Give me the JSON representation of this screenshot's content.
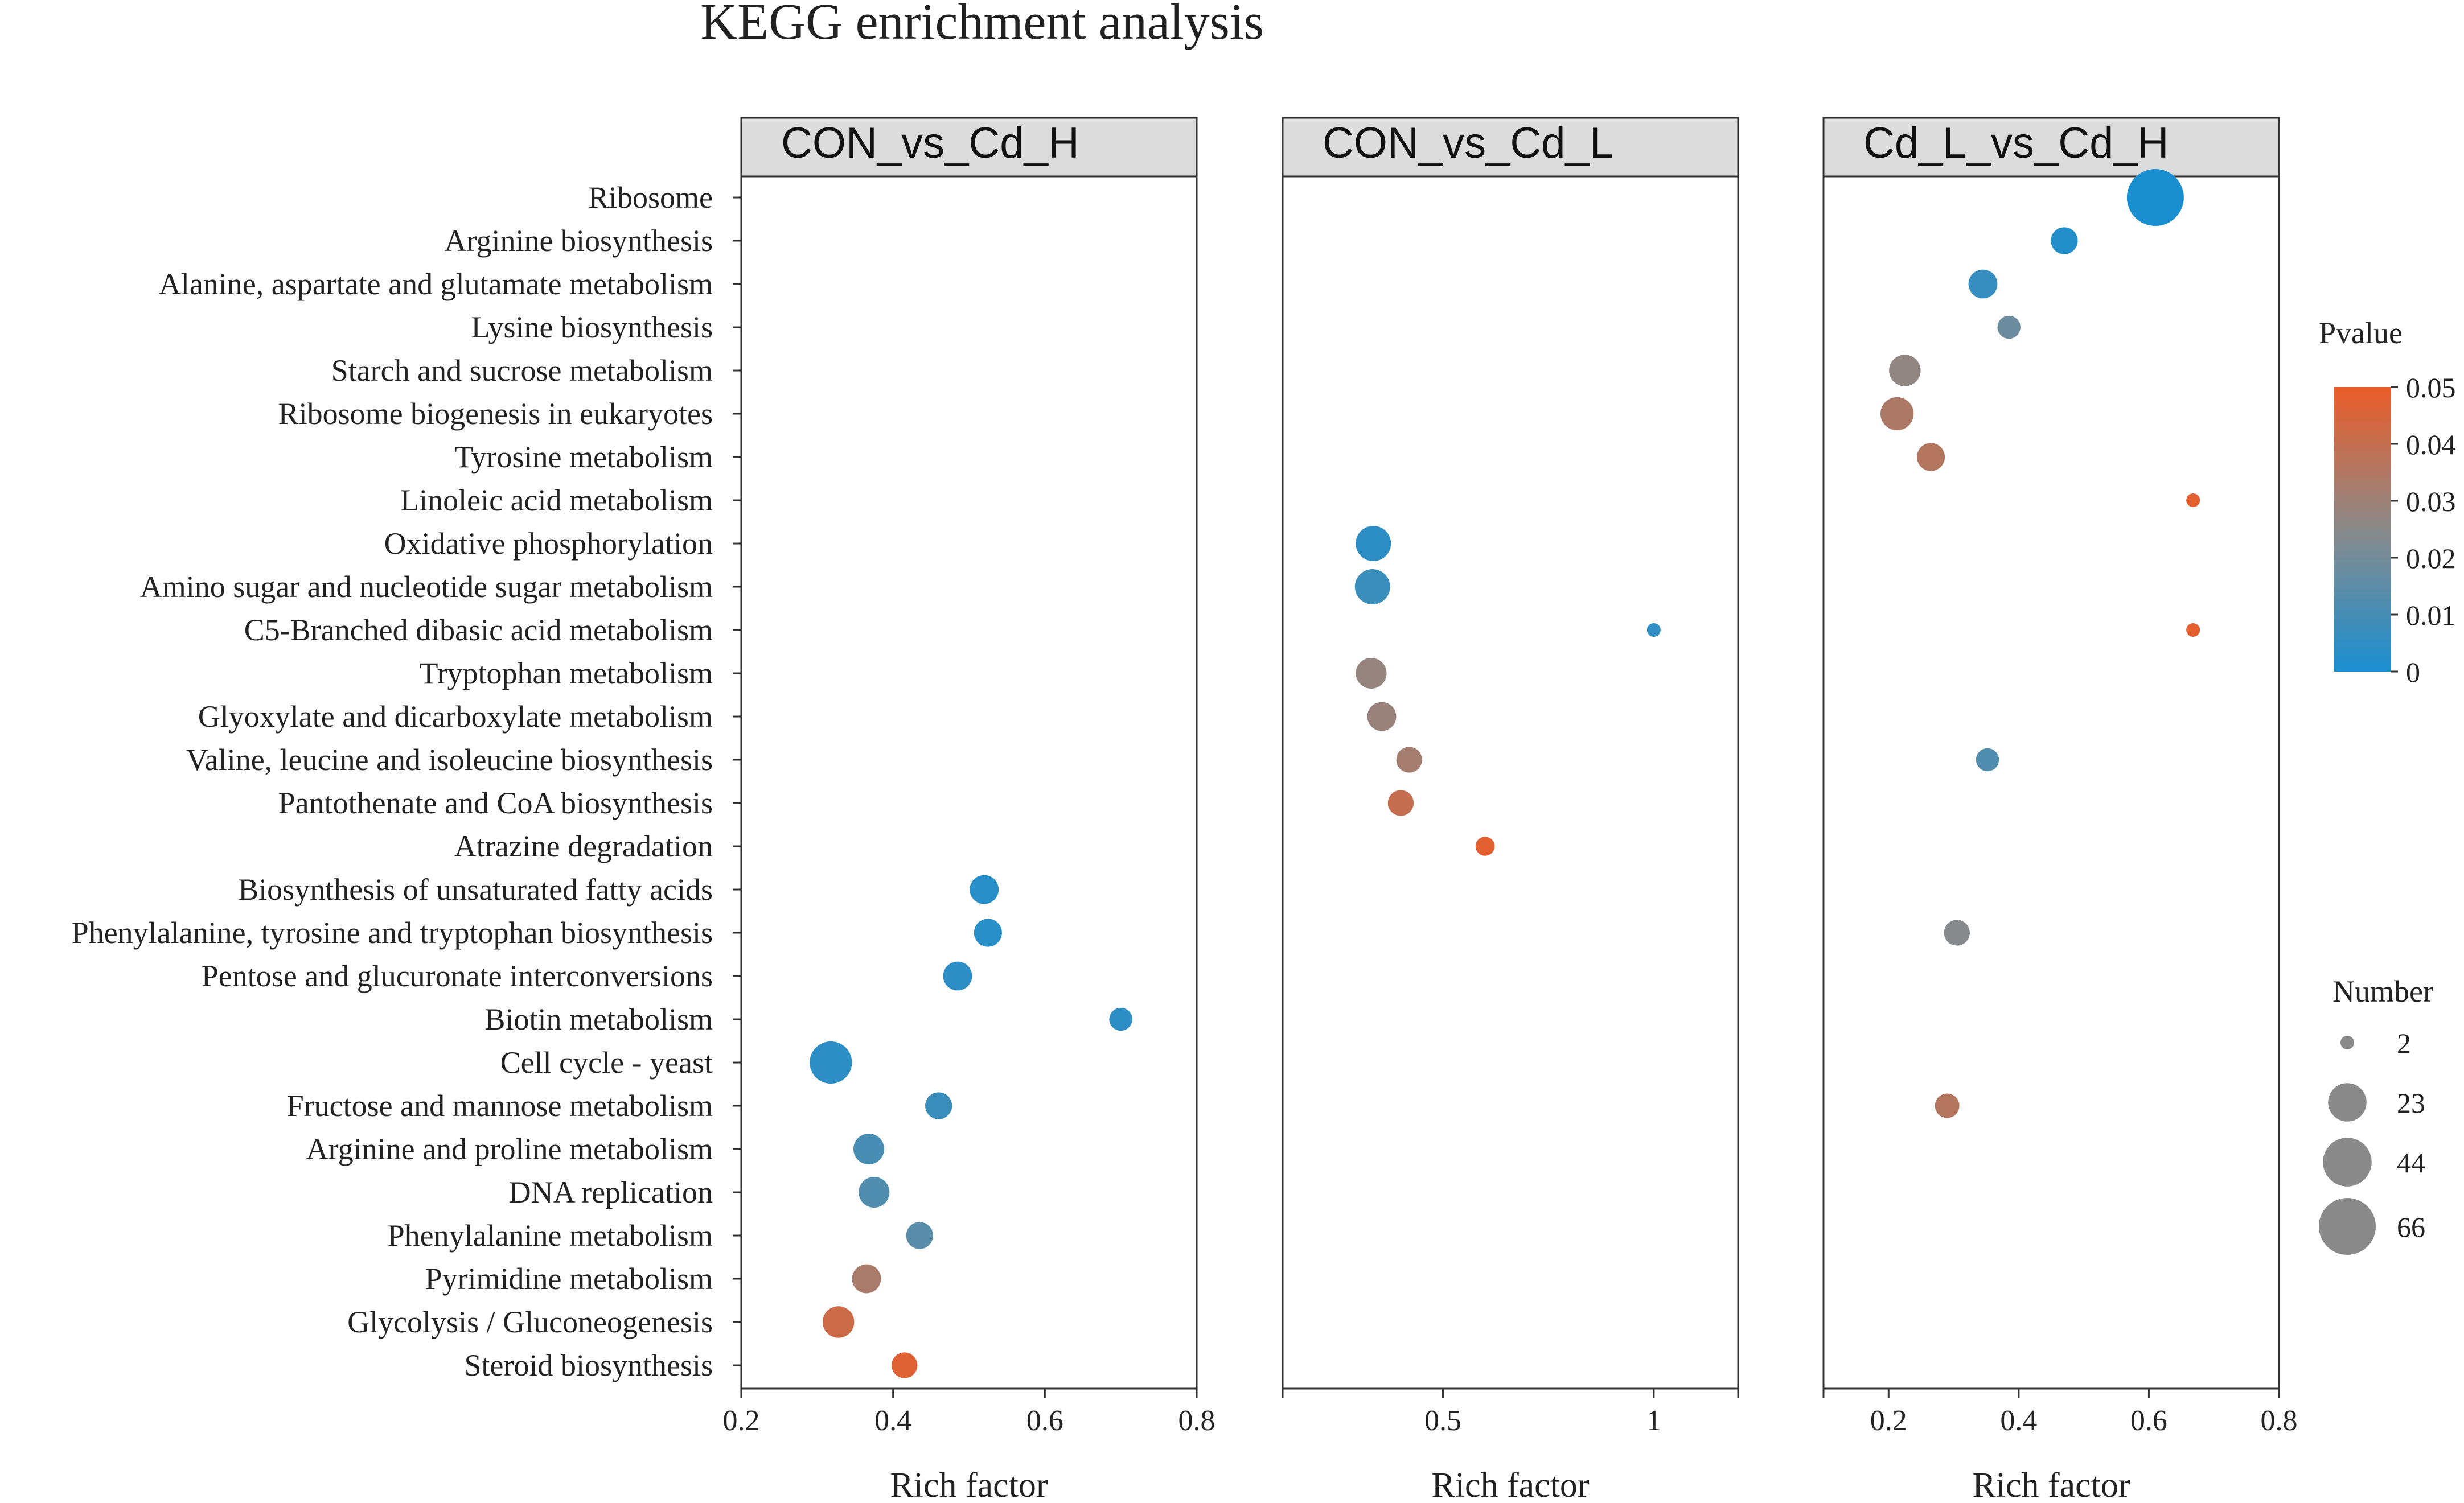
{
  "chart_data": {
    "type": "scatter",
    "title": "KEGG enrichment analysis",
    "xlabel": "Rich factor",
    "categories": [
      "Ribosome",
      "Arginine biosynthesis",
      "Alanine, aspartate and glutamate metabolism",
      "Lysine biosynthesis",
      "Starch and sucrose metabolism",
      "Ribosome biogenesis in eukaryotes",
      "Tyrosine metabolism",
      "Linoleic acid metabolism",
      "Oxidative phosphorylation",
      "Amino sugar and nucleotide sugar metabolism",
      "C5-Branched dibasic acid metabolism",
      "Tryptophan metabolism",
      "Glyoxylate and dicarboxylate metabolism",
      "Valine, leucine and isoleucine biosynthesis",
      "Pantothenate and CoA biosynthesis",
      "Atrazine degradation",
      "Biosynthesis of unsaturated fatty acids",
      "Phenylalanine, tyrosine and tryptophan biosynthesis",
      "Pentose and glucuronate interconversions",
      "Biotin metabolism",
      "Cell cycle - yeast",
      "Fructose and mannose metabolism",
      "Arginine and proline metabolism",
      "DNA replication",
      "Phenylalanine metabolism",
      "Pyrimidine metabolism",
      "Glycolysis / Gluconeogenesis",
      "Steroid biosynthesis"
    ],
    "panels": [
      {
        "name": "CON_vs_Cd_H",
        "xlim": [
          0.2,
          0.8
        ],
        "ticks": [
          0.2,
          0.4,
          0.6,
          0.8
        ],
        "tick_labels": [
          "0.2",
          "0.4",
          "0.6",
          "0.8"
        ],
        "points": [
          {
            "term": "Biosynthesis of unsaturated fatty acids",
            "x": 0.52,
            "number": 10,
            "pvalue": 0.003
          },
          {
            "term": "Phenylalanine, tyrosine and tryptophan biosynthesis",
            "x": 0.525,
            "number": 9,
            "pvalue": 0.003
          },
          {
            "term": "Pentose and glucuronate interconversions",
            "x": 0.485,
            "number": 10,
            "pvalue": 0.004
          },
          {
            "term": "Biotin metabolism",
            "x": 0.7,
            "number": 5,
            "pvalue": 0.004
          },
          {
            "term": "Cell cycle - yeast",
            "x": 0.318,
            "number": 30,
            "pvalue": 0.004
          },
          {
            "term": "Fructose and mannose metabolism",
            "x": 0.46,
            "number": 8,
            "pvalue": 0.007
          },
          {
            "term": "Arginine and proline metabolism",
            "x": 0.368,
            "number": 12,
            "pvalue": 0.01
          },
          {
            "term": "DNA replication",
            "x": 0.375,
            "number": 12,
            "pvalue": 0.012
          },
          {
            "term": "Phenylalanine metabolism",
            "x": 0.435,
            "number": 8,
            "pvalue": 0.014
          },
          {
            "term": "Pyrimidine metabolism",
            "x": 0.365,
            "number": 10,
            "pvalue": 0.033
          },
          {
            "term": "Glycolysis / Gluconeogenesis",
            "x": 0.328,
            "number": 13,
            "pvalue": 0.042
          },
          {
            "term": "Steroid biosynthesis",
            "x": 0.415,
            "number": 7,
            "pvalue": 0.047
          }
        ]
      },
      {
        "name": "CON_vs_Cd_L",
        "xlim": [
          0.12,
          1.2
        ],
        "ticks": [
          0.12,
          0.5,
          1.0,
          1.2
        ],
        "tick_labels": [
          "",
          "0.5",
          "1",
          ""
        ],
        "points": [
          {
            "term": "Oxidative phosphorylation",
            "x": 0.335,
            "number": 18,
            "pvalue": 0.004
          },
          {
            "term": "Amino sugar and nucleotide sugar metabolism",
            "x": 0.333,
            "number": 18,
            "pvalue": 0.007
          },
          {
            "term": "C5-Branched dibasic acid metabolism",
            "x": 1.0,
            "number": 2,
            "pvalue": 0.005
          },
          {
            "term": "Tryptophan metabolism",
            "x": 0.33,
            "number": 12,
            "pvalue": 0.028
          },
          {
            "term": "Glyoxylate and dicarboxylate metabolism",
            "x": 0.355,
            "number": 10,
            "pvalue": 0.029
          },
          {
            "term": "Valine, leucine and isoleucine biosynthesis",
            "x": 0.42,
            "number": 7,
            "pvalue": 0.032
          },
          {
            "term": "Pantothenate and CoA biosynthesis",
            "x": 0.4,
            "number": 7,
            "pvalue": 0.04
          },
          {
            "term": "Atrazine degradation",
            "x": 0.6,
            "number": 3,
            "pvalue": 0.048
          }
        ]
      },
      {
        "name": "Cd_L_vs_Cd_H",
        "xlim": [
          0.1,
          0.8
        ],
        "ticks": [
          0.1,
          0.2,
          0.4,
          0.6,
          0.8
        ],
        "tick_labels": [
          "",
          "0.2",
          "0.4",
          "0.6",
          "0.8"
        ],
        "points": [
          {
            "term": "Ribosome",
            "x": 0.61,
            "number": 66,
            "pvalue": 0.0
          },
          {
            "term": "Arginine biosynthesis",
            "x": 0.47,
            "number": 8,
            "pvalue": 0.002
          },
          {
            "term": "Alanine, aspartate and glutamate metabolism",
            "x": 0.345,
            "number": 10,
            "pvalue": 0.006
          },
          {
            "term": "Lysine biosynthesis",
            "x": 0.385,
            "number": 5,
            "pvalue": 0.018
          },
          {
            "term": "Starch and sucrose metabolism",
            "x": 0.225,
            "number": 13,
            "pvalue": 0.027
          },
          {
            "term": "Ribosome biogenesis in eukaryotes",
            "x": 0.213,
            "number": 15,
            "pvalue": 0.034
          },
          {
            "term": "Tyrosine metabolism",
            "x": 0.265,
            "number": 9,
            "pvalue": 0.036
          },
          {
            "term": "Linoleic acid metabolism",
            "x": 0.668,
            "number": 2,
            "pvalue": 0.048
          },
          {
            "term": "C5-Branched dibasic acid metabolism",
            "x": 0.668,
            "number": 2,
            "pvalue": 0.048
          },
          {
            "term": "Valine, leucine and isoleucine biosynthesis",
            "x": 0.352,
            "number": 5,
            "pvalue": 0.012
          },
          {
            "term": "Phenylalanine, tyrosine and tryptophan biosynthesis",
            "x": 0.305,
            "number": 7,
            "pvalue": 0.024
          },
          {
            "term": "Fructose and mannose metabolism",
            "x": 0.29,
            "number": 6,
            "pvalue": 0.036
          }
        ]
      }
    ],
    "legend_color": {
      "title": "Pvalue",
      "range": [
        0,
        0.05
      ],
      "ticks": [
        "0",
        "0.01",
        "0.02",
        "0.03",
        "0.04",
        "0.05"
      ],
      "low_color": "#1a8fd0",
      "high_color": "#ea5b28",
      "placement": "right"
    },
    "legend_size": {
      "title": "Number",
      "values": [
        2,
        23,
        44,
        66
      ],
      "labels": [
        "2",
        "23",
        "44",
        "66"
      ],
      "placement": "right"
    },
    "point_colors": {
      "low": "#1a8fd0",
      "mid": "#8a8a8a",
      "high": "#ea5b28"
    },
    "legend_swatch_color": "#8a8a8a"
  }
}
